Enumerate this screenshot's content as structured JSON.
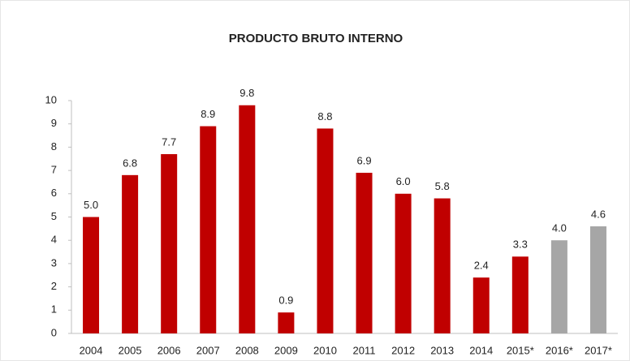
{
  "chart_data": {
    "type": "bar",
    "title": "PRODUCTO BRUTO INTERNO",
    "categories": [
      "2004",
      "2005",
      "2006",
      "2007",
      "2008",
      "2009",
      "2010",
      "2011",
      "2012",
      "2013",
      "2014",
      "2015*",
      "2016*",
      "2017*"
    ],
    "values": [
      5.0,
      6.8,
      7.7,
      8.9,
      9.8,
      0.9,
      8.8,
      6.9,
      6.0,
      5.8,
      2.4,
      3.3,
      4.0,
      4.6
    ],
    "value_labels": [
      "5.0",
      "6.8",
      "7.7",
      "8.9",
      "9.8",
      "0.9",
      "8.8",
      "6.9",
      "6.0",
      "5.8",
      "2.4",
      "3.3",
      "4.0",
      "4.6"
    ],
    "colors": [
      "#c00000",
      "#c00000",
      "#c00000",
      "#c00000",
      "#c00000",
      "#c00000",
      "#c00000",
      "#c00000",
      "#c00000",
      "#c00000",
      "#c00000",
      "#c00000",
      "#a6a6a6",
      "#a6a6a6"
    ],
    "ylim": [
      0,
      10
    ],
    "yticks": [
      0,
      1,
      2,
      3,
      4,
      5,
      6,
      7,
      8,
      9,
      10
    ],
    "grid": false
  }
}
